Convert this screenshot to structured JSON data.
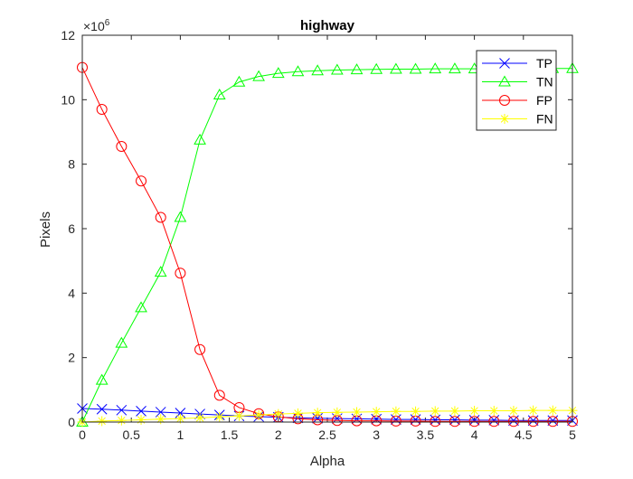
{
  "chart_data": {
    "type": "line",
    "title": "highway",
    "xlabel": "Alpha",
    "ylabel": "Pixels",
    "y_exponent_base": "×10",
    "y_exponent_power": "6",
    "xlim": [
      0,
      5
    ],
    "ylim": [
      0,
      12
    ],
    "xticks": [
      0,
      0.5,
      1,
      1.5,
      2,
      2.5,
      3,
      3.5,
      4,
      4.5,
      5
    ],
    "xtick_labels": [
      "0",
      "0.5",
      "1",
      "1.5",
      "2",
      "2.5",
      "3",
      "3.5",
      "4",
      "4.5",
      "5"
    ],
    "yticks": [
      0,
      2,
      4,
      6,
      8,
      10,
      12
    ],
    "ytick_labels": [
      "0",
      "2",
      "4",
      "6",
      "8",
      "10",
      "12"
    ],
    "grid": false,
    "legend_position": "top-right",
    "x": [
      0,
      0.2,
      0.4,
      0.6,
      0.8,
      1.0,
      1.2,
      1.4,
      1.6,
      1.8,
      2.0,
      2.2,
      2.4,
      2.6,
      2.8,
      3.0,
      3.2,
      3.4,
      3.6,
      3.8,
      4.0,
      4.2,
      4.4,
      4.6,
      4.8,
      5.0
    ],
    "series": [
      {
        "name": "TP",
        "color": "#0000ff",
        "marker": "x",
        "values": [
          0.42,
          0.4,
          0.37,
          0.34,
          0.31,
          0.28,
          0.25,
          0.22,
          0.19,
          0.17,
          0.15,
          0.13,
          0.12,
          0.11,
          0.1,
          0.09,
          0.08,
          0.08,
          0.07,
          0.07,
          0.06,
          0.06,
          0.05,
          0.05,
          0.05,
          0.05
        ]
      },
      {
        "name": "TN",
        "color": "#00ff00",
        "marker": "triangle",
        "values": [
          0.0,
          1.3,
          2.45,
          3.55,
          4.65,
          6.35,
          8.75,
          10.15,
          10.55,
          10.72,
          10.82,
          10.87,
          10.9,
          10.92,
          10.93,
          10.94,
          10.95,
          10.95,
          10.96,
          10.96,
          10.96,
          10.97,
          10.97,
          10.97,
          10.97,
          10.97
        ]
      },
      {
        "name": "FP",
        "color": "#ff0000",
        "marker": "circle",
        "values": [
          11.0,
          9.7,
          8.55,
          7.48,
          6.35,
          4.62,
          2.25,
          0.83,
          0.45,
          0.26,
          0.16,
          0.1,
          0.07,
          0.05,
          0.04,
          0.04,
          0.03,
          0.03,
          0.02,
          0.02,
          0.02,
          0.02,
          0.02,
          0.02,
          0.02,
          0.02
        ]
      },
      {
        "name": "FN",
        "color": "#ffff00",
        "marker": "asterisk",
        "values": [
          0.0,
          0.03,
          0.05,
          0.07,
          0.09,
          0.11,
          0.13,
          0.16,
          0.19,
          0.22,
          0.25,
          0.27,
          0.29,
          0.3,
          0.31,
          0.32,
          0.33,
          0.33,
          0.34,
          0.34,
          0.35,
          0.35,
          0.35,
          0.36,
          0.36,
          0.36
        ]
      }
    ]
  }
}
